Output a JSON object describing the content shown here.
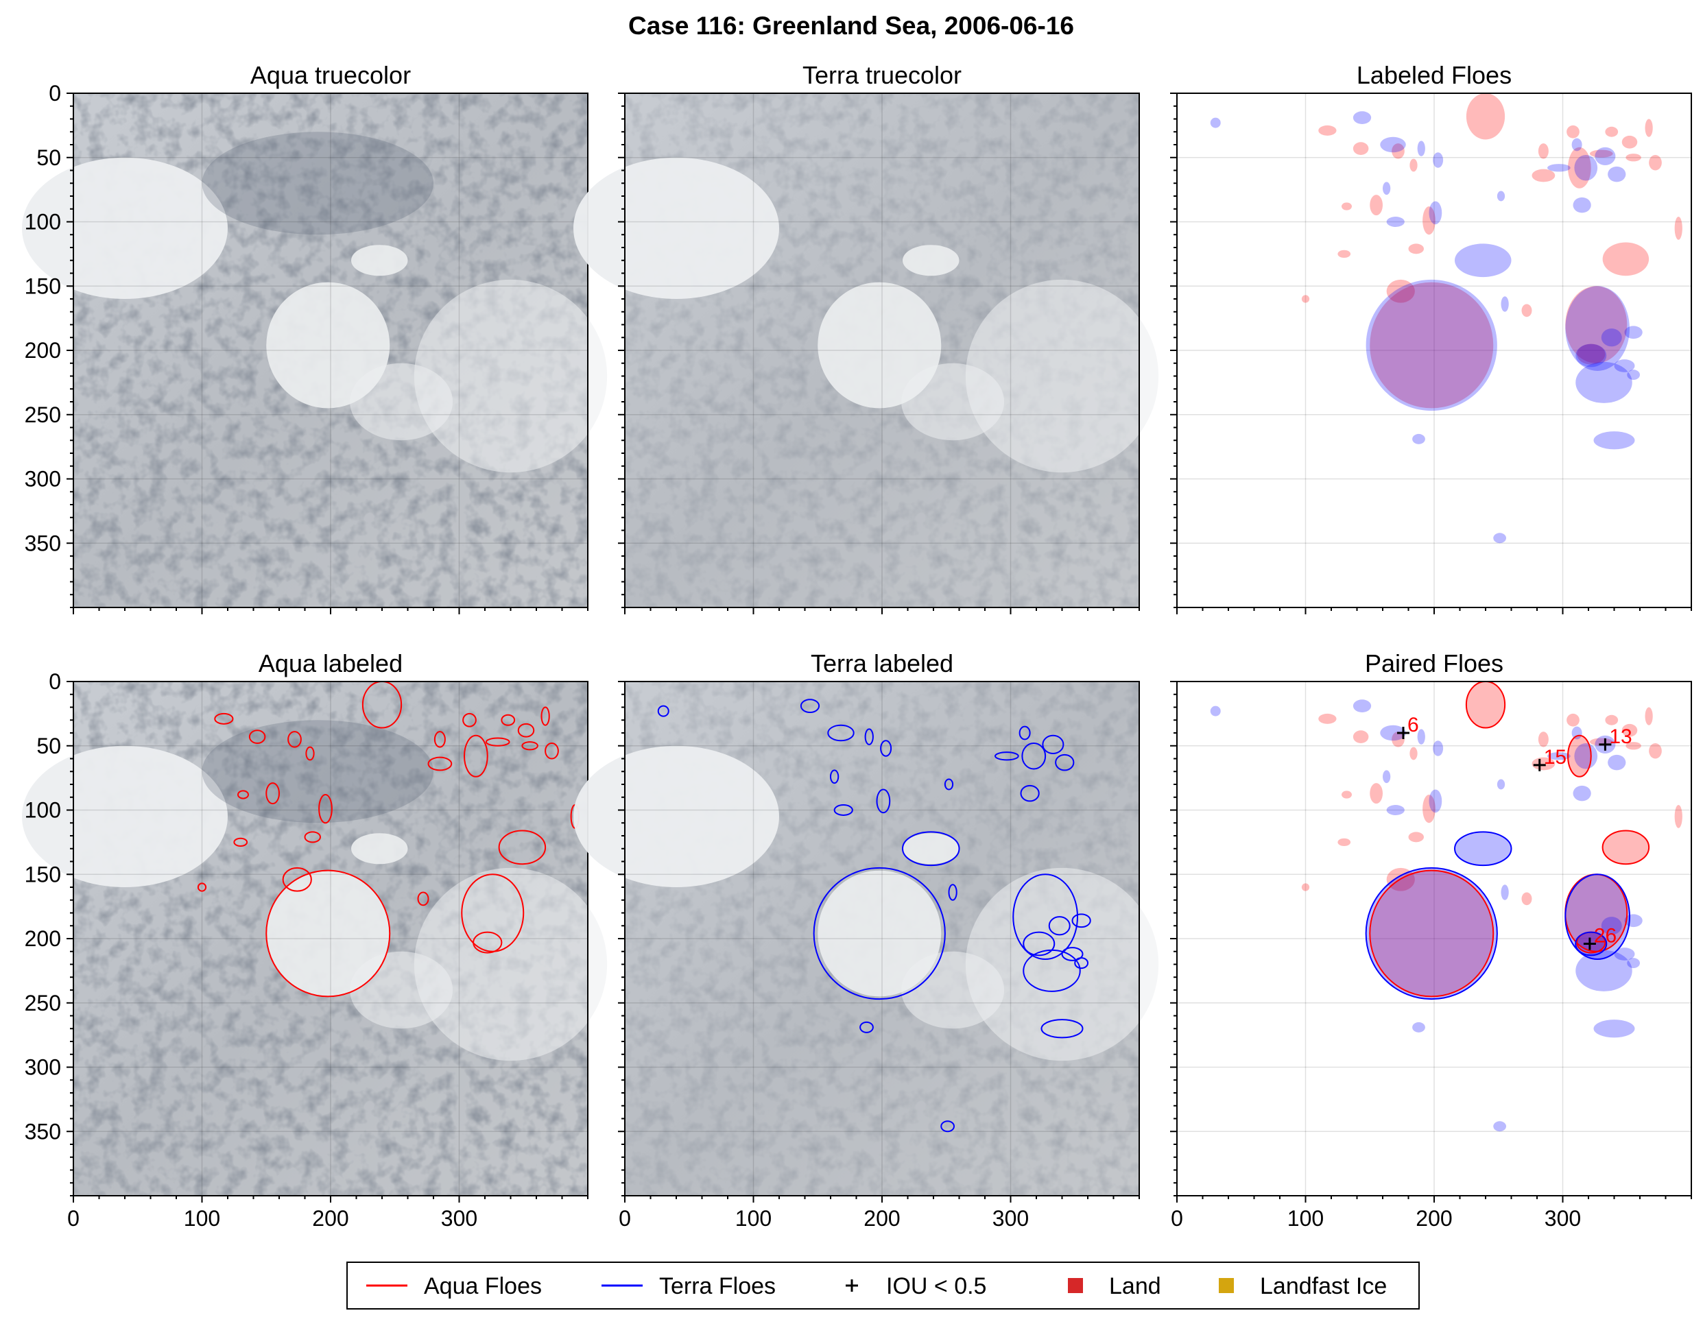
{
  "figure_title": "Case 116: Greenland Sea, 2006-06-16",
  "colors": {
    "aqua": "#ff0000",
    "terra": "#0000ff",
    "iou": "#000000",
    "land": "#d62728",
    "landfast": "#d4a50f"
  },
  "legend": [
    {
      "label": "Aqua Floes",
      "marker": "line",
      "color": "#ff0000"
    },
    {
      "label": "Terra Floes",
      "marker": "line",
      "color": "#0000ff"
    },
    {
      "label": "IOU < 0.5",
      "marker": "plus",
      "color": "#000000"
    },
    {
      "label": "Land",
      "marker": "square",
      "color": "#d62728"
    },
    {
      "label": "Landfast Ice",
      "marker": "square",
      "color": "#d4a50f"
    }
  ],
  "chart_data": [
    {
      "id": "aqua-truecolor",
      "type": "image",
      "title": "Aqua truecolor",
      "xlim": [
        0,
        400
      ],
      "ylim": [
        400,
        0
      ],
      "xticks": [
        0,
        100,
        200,
        300
      ],
      "yticks": [
        0,
        50,
        100,
        150,
        200,
        250,
        300,
        350
      ],
      "show_xlabels": false,
      "show_ylabels": true
    },
    {
      "id": "terra-truecolor",
      "type": "image",
      "title": "Terra truecolor",
      "xlim": [
        0,
        400
      ],
      "ylim": [
        400,
        0
      ],
      "xticks": [
        0,
        100,
        200,
        300
      ],
      "yticks": [
        0,
        50,
        100,
        150,
        200,
        250,
        300,
        350
      ],
      "show_xlabels": false,
      "show_ylabels": false
    },
    {
      "id": "labeled-floes",
      "type": "image",
      "title": "Labeled Floes",
      "xlim": [
        0,
        400
      ],
      "ylim": [
        400,
        0
      ],
      "xticks": [
        0,
        100,
        200,
        300
      ],
      "yticks": [
        0,
        50,
        100,
        150,
        200,
        250,
        300,
        350
      ],
      "show_xlabels": false,
      "show_ylabels": false
    },
    {
      "id": "aqua-labeled",
      "type": "image",
      "title": "Aqua labeled",
      "xlim": [
        0,
        400
      ],
      "ylim": [
        400,
        0
      ],
      "xticks": [
        0,
        100,
        200,
        300
      ],
      "yticks": [
        0,
        50,
        100,
        150,
        200,
        250,
        300,
        350
      ],
      "show_xlabels": true,
      "show_ylabels": true
    },
    {
      "id": "terra-labeled",
      "type": "image",
      "title": "Terra labeled",
      "xlim": [
        0,
        400
      ],
      "ylim": [
        400,
        0
      ],
      "xticks": [
        0,
        100,
        200,
        300
      ],
      "yticks": [
        0,
        50,
        100,
        150,
        200,
        250,
        300,
        350
      ],
      "show_xlabels": true,
      "show_ylabels": false
    },
    {
      "id": "paired-floes",
      "type": "image",
      "title": "Paired Floes",
      "xlim": [
        0,
        400
      ],
      "ylim": [
        400,
        0
      ],
      "xticks": [
        0,
        100,
        200,
        300
      ],
      "yticks": [
        0,
        50,
        100,
        150,
        200,
        250,
        300,
        350
      ],
      "show_xlabels": true,
      "show_ylabels": false,
      "pairs": [
        {
          "label": "6",
          "x": 176,
          "y": 40
        },
        {
          "label": "13",
          "x": 333,
          "y": 49
        },
        {
          "label": "15",
          "x": 282,
          "y": 65
        },
        {
          "label": "26",
          "x": 321,
          "y": 204
        }
      ]
    }
  ],
  "floes": {
    "aqua": [
      {
        "x": 198,
        "y": 196,
        "rx": 48,
        "ry": 49
      },
      {
        "x": 240,
        "y": 18,
        "rx": 15,
        "ry": 18
      },
      {
        "x": 349,
        "y": 129,
        "rx": 18,
        "ry": 13
      },
      {
        "x": 326,
        "y": 180,
        "rx": 24,
        "ry": 30
      },
      {
        "x": 322,
        "y": 203,
        "rx": 11,
        "ry": 8
      },
      {
        "x": 313,
        "y": 58,
        "rx": 9,
        "ry": 16
      },
      {
        "x": 174,
        "y": 154,
        "rx": 11,
        "ry": 9
      },
      {
        "x": 117,
        "y": 29,
        "rx": 7,
        "ry": 4
      },
      {
        "x": 143,
        "y": 43,
        "rx": 6,
        "ry": 5
      },
      {
        "x": 172,
        "y": 45,
        "rx": 5,
        "ry": 6
      },
      {
        "x": 184,
        "y": 56,
        "rx": 3,
        "ry": 5
      },
      {
        "x": 196,
        "y": 99,
        "rx": 5,
        "ry": 11
      },
      {
        "x": 186,
        "y": 121,
        "rx": 6,
        "ry": 4
      },
      {
        "x": 155,
        "y": 87,
        "rx": 5,
        "ry": 8
      },
      {
        "x": 132,
        "y": 88,
        "rx": 4,
        "ry": 3
      },
      {
        "x": 272,
        "y": 169,
        "rx": 4,
        "ry": 5
      },
      {
        "x": 285,
        "y": 64,
        "rx": 9,
        "ry": 5
      },
      {
        "x": 285,
        "y": 45,
        "rx": 4,
        "ry": 6
      },
      {
        "x": 308,
        "y": 30,
        "rx": 5,
        "ry": 5
      },
      {
        "x": 338,
        "y": 30,
        "rx": 5,
        "ry": 4
      },
      {
        "x": 352,
        "y": 38,
        "rx": 6,
        "ry": 5
      },
      {
        "x": 367,
        "y": 27,
        "rx": 3,
        "ry": 7
      },
      {
        "x": 330,
        "y": 47,
        "rx": 9,
        "ry": 3
      },
      {
        "x": 355,
        "y": 50,
        "rx": 6,
        "ry": 3
      },
      {
        "x": 372,
        "y": 54,
        "rx": 5,
        "ry": 6
      },
      {
        "x": 390,
        "y": 105,
        "rx": 3,
        "ry": 9
      },
      {
        "x": 130,
        "y": 125,
        "rx": 5,
        "ry": 3
      },
      {
        "x": 100,
        "y": 160,
        "rx": 3,
        "ry": 3
      }
    ],
    "terra": [
      {
        "x": 198,
        "y": 196,
        "rx": 51,
        "ry": 51
      },
      {
        "x": 238,
        "y": 130,
        "rx": 22,
        "ry": 13
      },
      {
        "x": 327,
        "y": 183,
        "rx": 25,
        "ry": 33
      },
      {
        "x": 322,
        "y": 204,
        "rx": 12,
        "ry": 9
      },
      {
        "x": 168,
        "y": 40,
        "rx": 10,
        "ry": 6
      },
      {
        "x": 144,
        "y": 19,
        "rx": 7,
        "ry": 5
      },
      {
        "x": 190,
        "y": 43,
        "rx": 3,
        "ry": 6
      },
      {
        "x": 203,
        "y": 52,
        "rx": 4,
        "ry": 6
      },
      {
        "x": 163,
        "y": 74,
        "rx": 3,
        "ry": 5
      },
      {
        "x": 201,
        "y": 93,
        "rx": 5,
        "ry": 9
      },
      {
        "x": 170,
        "y": 100,
        "rx": 7,
        "ry": 4
      },
      {
        "x": 252,
        "y": 80,
        "rx": 3,
        "ry": 4
      },
      {
        "x": 297,
        "y": 58,
        "rx": 9,
        "ry": 3
      },
      {
        "x": 311,
        "y": 40,
        "rx": 4,
        "ry": 5
      },
      {
        "x": 318,
        "y": 58,
        "rx": 9,
        "ry": 10
      },
      {
        "x": 333,
        "y": 49,
        "rx": 8,
        "ry": 7
      },
      {
        "x": 342,
        "y": 63,
        "rx": 7,
        "ry": 6
      },
      {
        "x": 315,
        "y": 87,
        "rx": 7,
        "ry": 6
      },
      {
        "x": 255,
        "y": 164,
        "rx": 3,
        "ry": 6
      },
      {
        "x": 332,
        "y": 225,
        "rx": 22,
        "ry": 16
      },
      {
        "x": 340,
        "y": 270,
        "rx": 16,
        "ry": 7
      },
      {
        "x": 338,
        "y": 190,
        "rx": 8,
        "ry": 7
      },
      {
        "x": 348,
        "y": 212,
        "rx": 8,
        "ry": 5
      },
      {
        "x": 355,
        "y": 186,
        "rx": 7,
        "ry": 5
      },
      {
        "x": 355,
        "y": 219,
        "rx": 5,
        "ry": 4
      },
      {
        "x": 188,
        "y": 269,
        "rx": 5,
        "ry": 4
      },
      {
        "x": 251,
        "y": 346,
        "rx": 5,
        "ry": 4
      },
      {
        "x": 30,
        "y": 23,
        "rx": 4,
        "ry": 4
      }
    ]
  }
}
